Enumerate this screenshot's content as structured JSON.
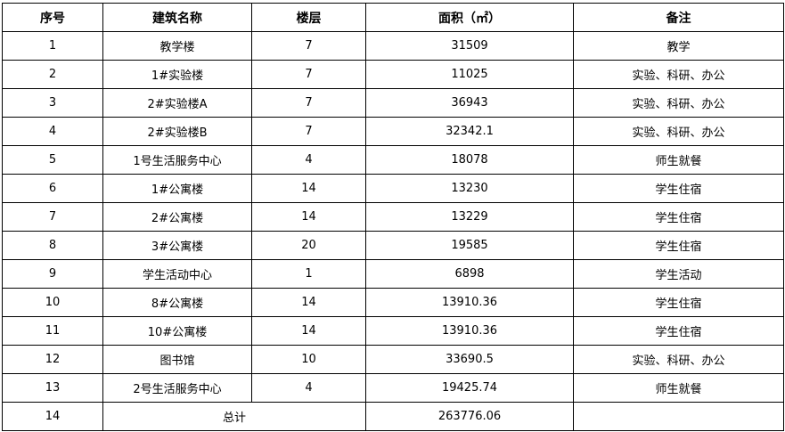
{
  "headers": [
    "序号",
    "建筑名称",
    "楼层",
    "面积（㎡）",
    "备注"
  ],
  "rows": [
    [
      "1",
      "教学楼",
      "7",
      "31509",
      "教学"
    ],
    [
      "2",
      "1#实验楼",
      "7",
      "11025",
      "实验、科研、办公"
    ],
    [
      "3",
      "2#实验楼A",
      "7",
      "36943",
      "实验、科研、办公"
    ],
    [
      "4",
      "2#实验楼B",
      "7",
      "32342.1",
      "实验、科研、办公"
    ],
    [
      "5",
      "1号生活服务中心",
      "4",
      "18078",
      "师生就餐"
    ],
    [
      "6",
      "1#公寓楼",
      "14",
      "13230",
      "学生住宿"
    ],
    [
      "7",
      "2#公寓楼",
      "14",
      "13229",
      "学生住宿"
    ],
    [
      "8",
      "3#公寓楼",
      "20",
      "19585",
      "学生住宿"
    ],
    [
      "9",
      "学生活动中心",
      "1",
      "6898",
      "学生活动"
    ],
    [
      "10",
      "8#公寓楼",
      "14",
      "13910.36",
      "学生住宿"
    ],
    [
      "11",
      "10#公寓楼",
      "14",
      "13910.36",
      "学生住宿"
    ],
    [
      "12",
      "图书馆",
      "10",
      "33690.5",
      "实验、科研、办公"
    ],
    [
      "13",
      "2号生活服务中心",
      "4",
      "19425.74",
      "师生就餐"
    ]
  ],
  "total": {
    "index": "14",
    "label": "总计",
    "area": "263776.06",
    "note": ""
  }
}
